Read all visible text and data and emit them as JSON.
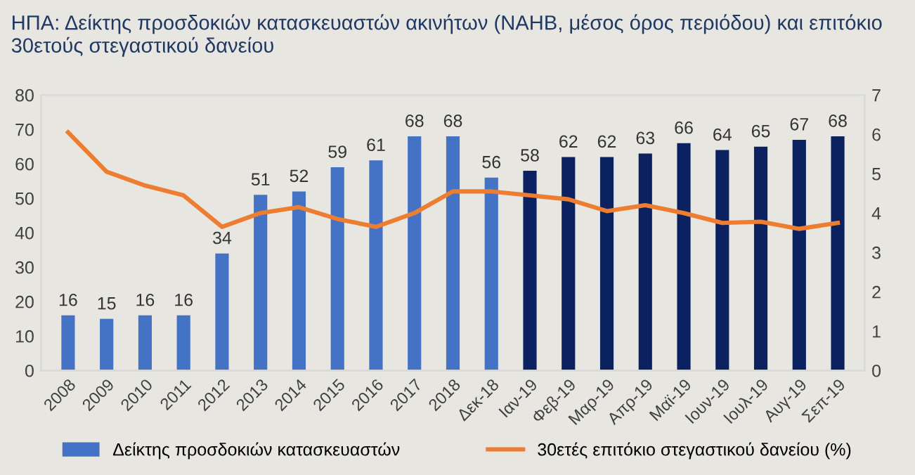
{
  "chart_data": {
    "type": "bar",
    "title": "ΗΠΑ: Δείκτης προσδοκιών κατασκευαστών ακινήτων (NAHB, μέσος όρος περιόδου) και επιτόκιο 30ετούς στεγαστικού δανείου",
    "categories": [
      "2008",
      "2009",
      "2010",
      "2011",
      "2012",
      "2013",
      "2014",
      "2015",
      "2016",
      "2017",
      "2018",
      "Δεκ-18",
      "Ιαν-19",
      "Φεβ-19",
      "Μαρ-19",
      "Απρ-19",
      "Μαϊ-19",
      "Ιουν-19",
      "Ιουλ-19",
      "Αυγ-19",
      "Σεπ-19"
    ],
    "series": [
      {
        "name": "Δείκτης προσδοκιών κατασκευαστών",
        "value_labels": [
          "16",
          "15",
          "16",
          "16",
          "34",
          "51",
          "52",
          "59",
          "61",
          "68",
          "68",
          "56",
          "58",
          "62",
          "62",
          "63",
          "66",
          "64",
          "65",
          "67",
          "68"
        ],
        "color": "#4472c4",
        "colors": [
          "#4472c4",
          "#4472c4",
          "#4472c4",
          "#4472c4",
          "#4472c4",
          "#4472c4",
          "#4472c4",
          "#4472c4",
          "#4472c4",
          "#4472c4",
          "#4472c4",
          "#4472c4",
          "#0b2160",
          "#0b2160",
          "#0b2160",
          "#0b2160",
          "#0b2160",
          "#0b2160",
          "#0b2160",
          "#0b2160",
          "#0b2160"
        ],
        "values": [
          16,
          15,
          16,
          16,
          34,
          51,
          52,
          59,
          61,
          68,
          68,
          56,
          58,
          62,
          62,
          63,
          66,
          64,
          65,
          67,
          68
        ]
      },
      {
        "name": "30ετές επιτόκιο στεγαστικού δανείου (%)",
        "type": "line",
        "axis": "y2",
        "color": "#ed7d31",
        "values": [
          6.05,
          5.05,
          4.7,
          4.45,
          3.65,
          4.0,
          4.15,
          3.85,
          3.65,
          4.0,
          4.55,
          4.55,
          4.45,
          4.35,
          4.05,
          4.2,
          4.0,
          3.75,
          3.78,
          3.6,
          3.75
        ]
      }
    ],
    "ylim": [
      0,
      80
    ],
    "yticks": [
      0,
      10,
      20,
      30,
      40,
      50,
      60,
      70,
      80
    ],
    "y2lim": [
      0,
      7
    ],
    "y2ticks": [
      0,
      1,
      2,
      3,
      4,
      5,
      6,
      7
    ],
    "grid": false,
    "legend": "bottom",
    "marker": "none",
    "line_style": "solid"
  }
}
